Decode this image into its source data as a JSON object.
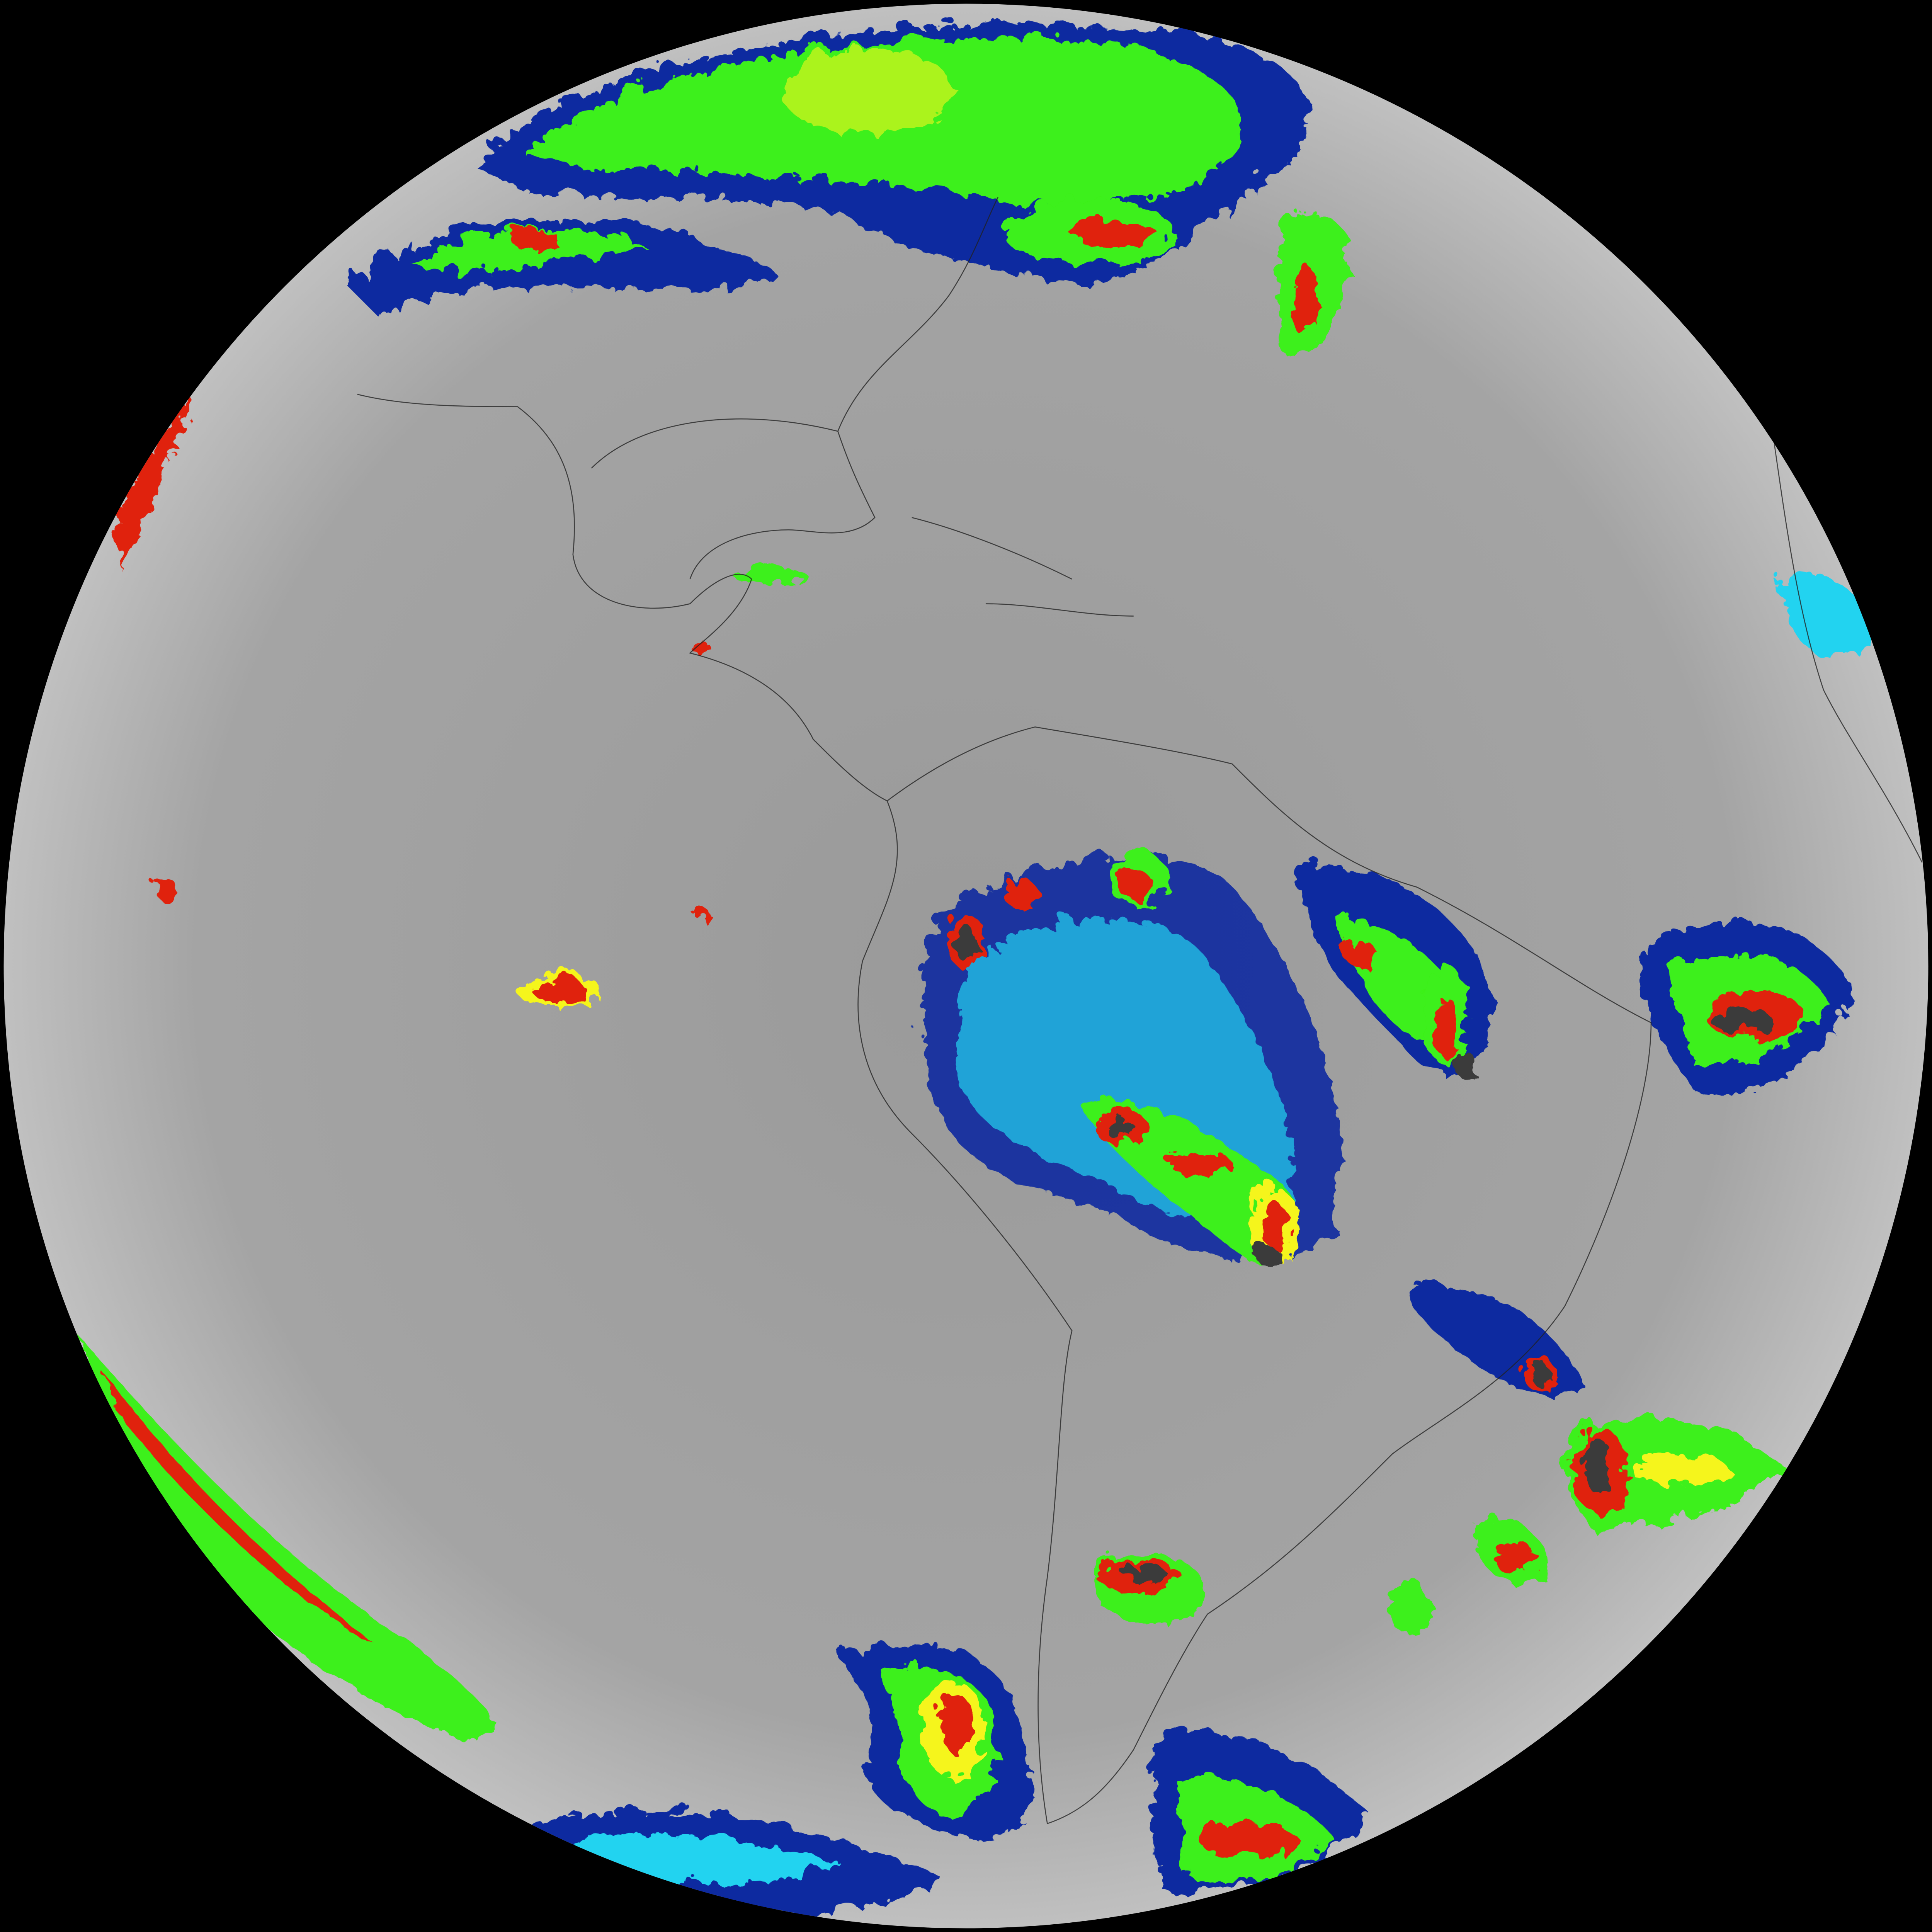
{
  "image": {
    "kind": "full-disk infrared satellite image",
    "colors": {
      "space": "#000000",
      "clear_sky_gray": "#9c9c9c",
      "cold_cloud_cyan": "#22d3f0",
      "cold_cloud_blue": "#0a2aa0",
      "cold_cloud_green": "#3cf01a",
      "cold_cloud_yellow": "#f5f51e",
      "cold_cloud_red": "#e0200a",
      "coldest_tops_dark": "#3a3a3a",
      "coastline": "#222222"
    }
  }
}
